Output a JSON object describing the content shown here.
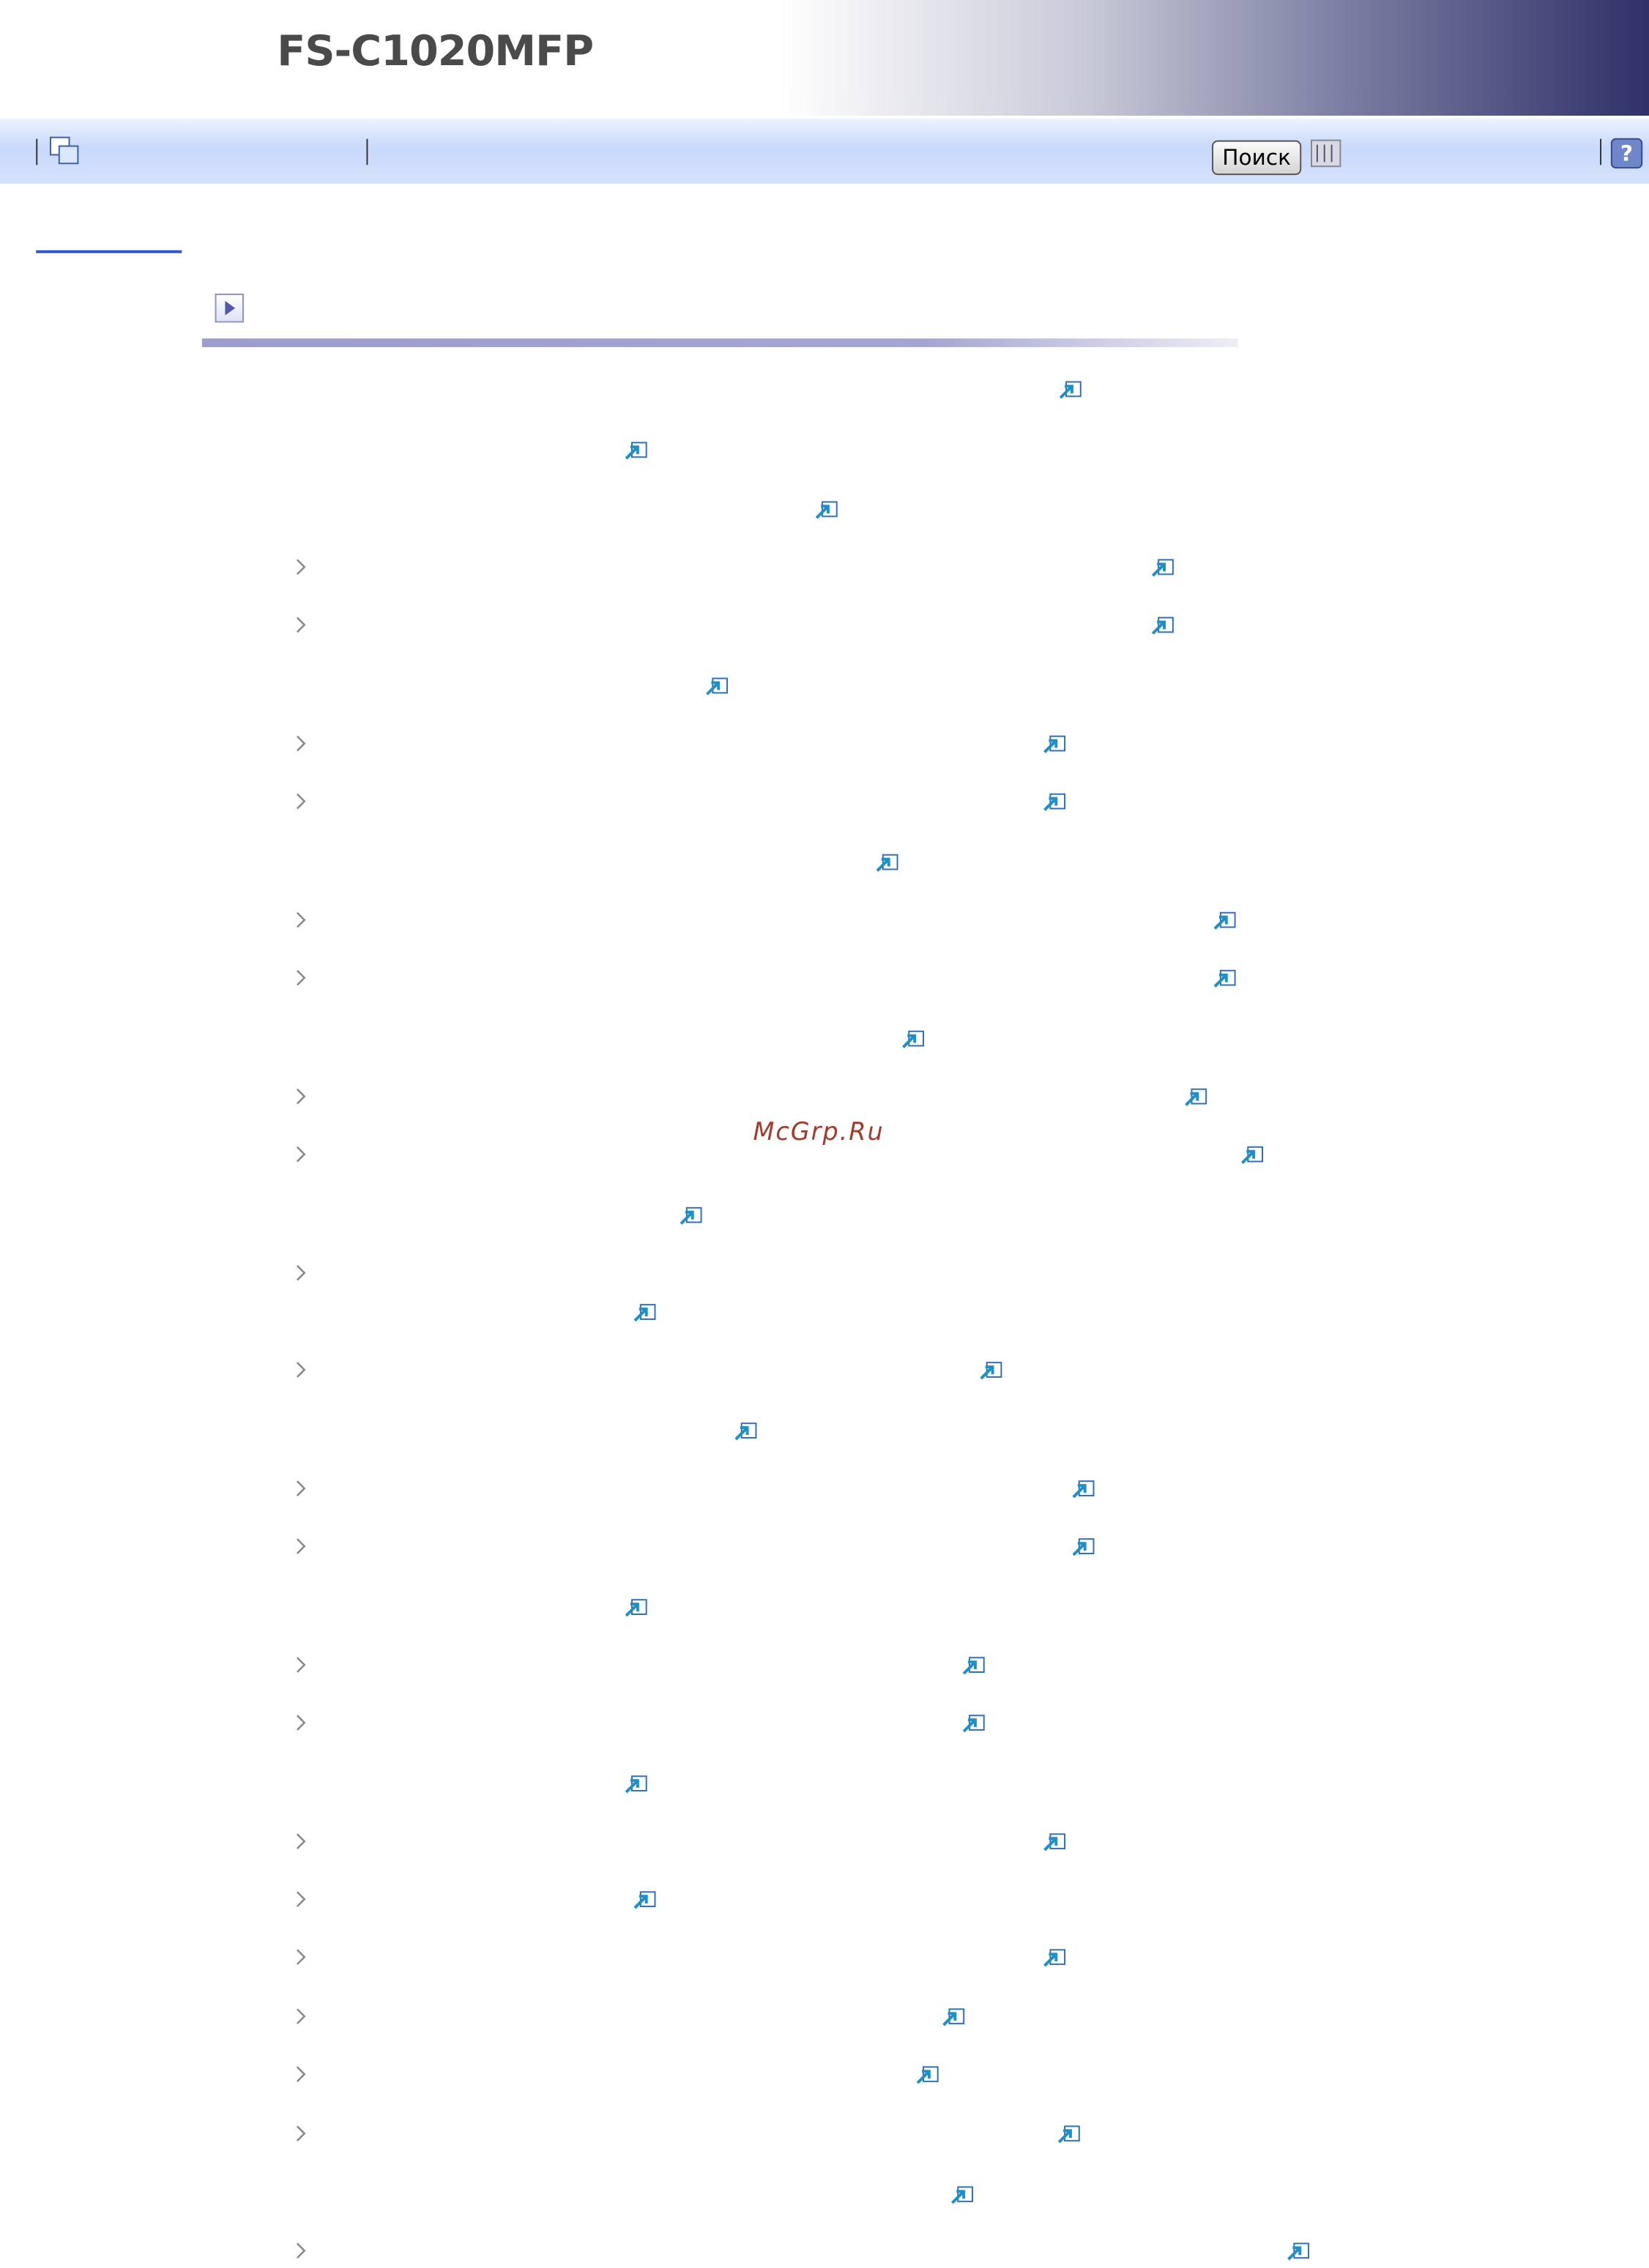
{
  "header": {
    "title": "FS-C1020MFP"
  },
  "toolbar": {
    "search_button": "Поиск"
  },
  "watermark": "McGrp.Ru"
}
